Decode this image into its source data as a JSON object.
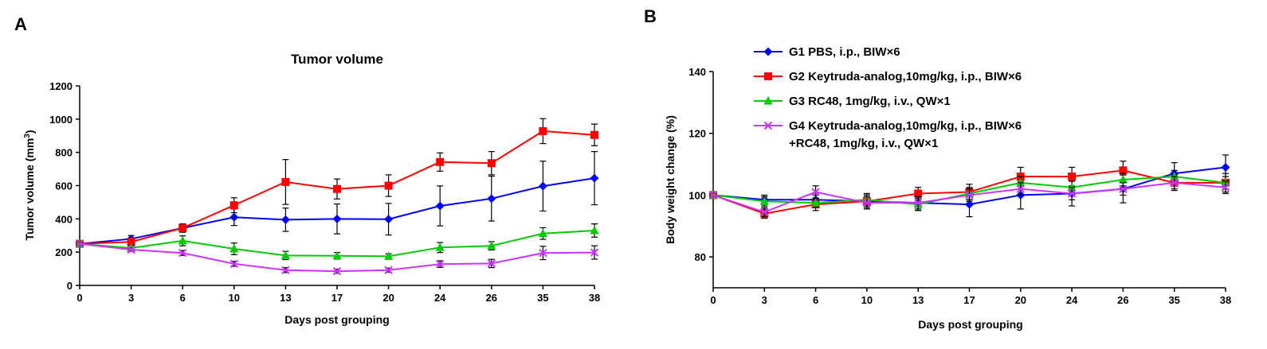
{
  "panels": {
    "a_letter": "A",
    "b_letter": "B"
  },
  "legend": {
    "entries": [
      {
        "lines": [
          "G1 PBS, i.p., BIW×6"
        ],
        "color": "#0000ff",
        "marker": "diamond"
      },
      {
        "lines": [
          "G2 Keytruda-analog,10mg/kg, i.p., BIW×6"
        ],
        "color": "#ff0000",
        "marker": "square"
      },
      {
        "lines": [
          "G3 RC48, 1mg/kg, i.v., QW×1"
        ],
        "color": "#00cc00",
        "marker": "triangle"
      },
      {
        "lines": [
          "G4 Keytruda-analog,10mg/kg, i.p., BIW×6",
          "+RC48, 1mg/kg, i.v., QW×1"
        ],
        "color": "#cc33ff",
        "marker": "x"
      }
    ]
  },
  "chart_data": [
    {
      "type": "line",
      "title": "Tumor volume",
      "xlabel": "Days post grouping",
      "ylabel_main": "Tumor volume (mm",
      "ylabel_sup": "3",
      "ylabel_end": ")",
      "categories": [
        "0",
        "3",
        "6",
        "10",
        "13",
        "17",
        "20",
        "24",
        "26",
        "35",
        "38"
      ],
      "ylim": [
        0,
        1200
      ],
      "yticks": [
        0,
        200,
        400,
        600,
        800,
        1000,
        1200
      ],
      "series": [
        {
          "name": "G1 PBS, i.p., BIW×6",
          "color": "#0000ff",
          "marker": "diamond",
          "values": [
            250,
            280,
            345,
            410,
            395,
            400,
            398,
            478,
            522,
            597,
            645
          ],
          "errors": [
            20,
            20,
            25,
            50,
            70,
            90,
            95,
            120,
            135,
            150,
            160
          ]
        },
        {
          "name": "G2 Keytruda-analog,10mg/kg, i.p., BIW×6",
          "color": "#ff0000",
          "marker": "square",
          "values": [
            250,
            262,
            345,
            482,
            622,
            580,
            600,
            742,
            735,
            928,
            905
          ],
          "errors": [
            15,
            20,
            25,
            45,
            135,
            60,
            65,
            55,
            70,
            75,
            65
          ]
        },
        {
          "name": "G3 RC48, 1mg/kg, i.v., QW×1",
          "color": "#00cc00",
          "marker": "triangle",
          "values": [
            250,
            225,
            268,
            220,
            180,
            178,
            175,
            228,
            238,
            312,
            330
          ],
          "errors": [
            15,
            15,
            30,
            35,
            25,
            20,
            15,
            30,
            25,
            35,
            40
          ]
        },
        {
          "name": "G4 Keytruda-analog,10mg/kg, i.p., BIW×6 +RC48, 1mg/kg, i.v., QW×1",
          "color": "#cc33ff",
          "marker": "x",
          "values": [
            250,
            215,
            195,
            130,
            92,
            85,
            92,
            128,
            132,
            195,
            198
          ],
          "errors": [
            10,
            10,
            15,
            15,
            15,
            12,
            12,
            20,
            25,
            40,
            40
          ]
        }
      ]
    },
    {
      "type": "line",
      "title": "",
      "xlabel": "Days post grouping",
      "ylabel": "Body weight change (%)",
      "categories": [
        "0",
        "3",
        "6",
        "10",
        "13",
        "17",
        "20",
        "24",
        "26",
        "35",
        "38"
      ],
      "ylim": [
        70,
        140
      ],
      "yticks": [
        80,
        100,
        120,
        140
      ],
      "series": [
        {
          "name": "G1 PBS, i.p., BIW×6",
          "color": "#0000ff",
          "marker": "diamond",
          "values": [
            100,
            98.5,
            98.5,
            98,
            97.5,
            97,
            100,
            100.5,
            102,
            107,
            109
          ],
          "errors": [
            0.5,
            1.5,
            1.5,
            2.5,
            2.5,
            4,
            4.5,
            4,
            4.5,
            3.5,
            4
          ]
        },
        {
          "name": "G2 Keytruda-analog,10mg/kg, i.p., BIW×6",
          "color": "#ff0000",
          "marker": "square",
          "values": [
            100,
            94,
            97,
            98,
            100.5,
            101,
            106,
            106,
            108,
            104,
            104
          ],
          "errors": [
            0.5,
            1.5,
            2,
            2,
            2,
            2.5,
            3,
            3,
            3,
            2.5,
            3
          ]
        },
        {
          "name": "G3 RC48, 1mg/kg, i.v., QW×1",
          "color": "#00cc00",
          "marker": "triangle",
          "values": [
            100,
            98,
            97.5,
            98.5,
            97,
            100.5,
            104,
            102.5,
            105,
            106,
            104
          ],
          "errors": [
            0.5,
            1.5,
            1.5,
            2,
            2,
            2,
            2,
            2,
            2,
            2,
            2
          ]
        },
        {
          "name": "G4 Keytruda-analog,10mg/kg, i.p., BIW×6 +RC48, 1mg/kg, i.v., QW×1",
          "color": "#cc33ff",
          "marker": "x",
          "values": [
            100,
            94.5,
            101,
            97.5,
            97.5,
            100,
            102,
            100.5,
            102,
            104,
            102.5
          ],
          "errors": [
            0.5,
            1.5,
            2,
            2,
            2,
            2,
            2,
            2,
            2,
            2,
            2
          ]
        }
      ]
    }
  ]
}
